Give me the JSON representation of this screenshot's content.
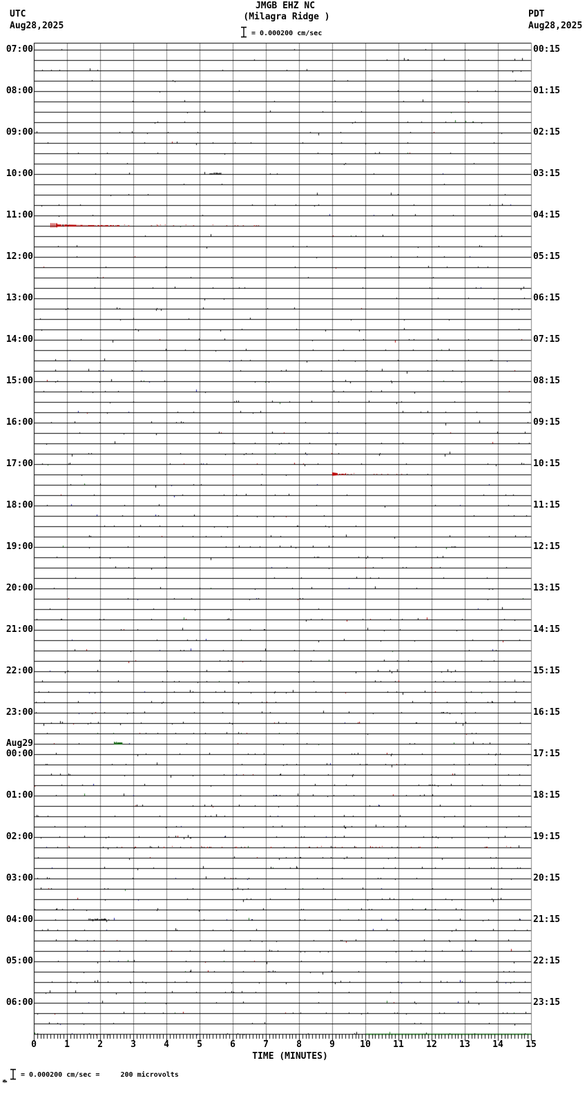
{
  "header": {
    "utc_label": "UTC",
    "utc_date": "Aug28,2025",
    "pdt_label": "PDT",
    "pdt_date": "Aug28,2025",
    "station_code": "JMGB EHZ NC",
    "station_name": "(Milagra Ridge )",
    "scale_text": "= 0.000200 cm/sec"
  },
  "footer": {
    "x_axis_title": "TIME (MINUTES)",
    "calibration_note": "= 0.000200 cm/sec =     200 microvolts"
  },
  "chart_data": {
    "type": "line",
    "subtype": "helicorder-seismogram",
    "title": "JMGB EHZ NC",
    "subtitle": "(Milagra Ridge )",
    "xlabel": "TIME (MINUTES)",
    "x_range": [
      0,
      15
    ],
    "x_tick_labels": [
      "0",
      "1",
      "2",
      "3",
      "4",
      "5",
      "6",
      "7",
      "8",
      "9",
      "10",
      "11",
      "12",
      "13",
      "14",
      "15"
    ],
    "minor_tick_minutes": 0.1,
    "grid": "vertical-minute-lines",
    "grid_color": "#808080",
    "trace_color": "#000000",
    "rows": {
      "count": 96,
      "traces_per_hour": 4,
      "minutes_per_trace": 15,
      "utc_hour_labels": [
        "07:00",
        "08:00",
        "09:00",
        "10:00",
        "11:00",
        "12:00",
        "13:00",
        "14:00",
        "15:00",
        "16:00",
        "17:00",
        "18:00",
        "19:00",
        "20:00",
        "21:00",
        "22:00",
        "23:00",
        "00:00",
        "01:00",
        "02:00",
        "03:00",
        "04:00",
        "05:00",
        "06:00"
      ],
      "pdt_hour_labels": [
        "00:15",
        "01:15",
        "02:15",
        "03:15",
        "04:15",
        "05:15",
        "06:15",
        "07:15",
        "08:15",
        "09:15",
        "10:15",
        "11:15",
        "12:15",
        "13:15",
        "14:15",
        "15:15",
        "16:15",
        "17:15",
        "18:15",
        "19:15",
        "20:15",
        "21:15",
        "22:15",
        "23:15"
      ],
      "date_rollover": {
        "label": "Aug29",
        "above_hour_index": 17
      }
    },
    "noise": {
      "seed": 1337,
      "base_density": 0.012,
      "mid_rows_from": 28,
      "mid_density": 0.018,
      "busy_rows_from": 60,
      "busy_density": 0.03,
      "colors": {
        "black": "#000000",
        "red": "#bb0000",
        "blue": "#1414aa",
        "green": "#1a7a1a"
      }
    },
    "events": [
      {
        "row": 12,
        "type": "squiggle",
        "color": "#000000",
        "start_min": 5.3,
        "end_min": 5.65,
        "amp": 2,
        "desc": "small black disturbance on 10:00 UTC row"
      },
      {
        "row": 17,
        "type": "burst",
        "color": "#bb0000",
        "start_min": 0.5,
        "end_min": 2.6,
        "tail_end_min": 6.8,
        "amp": 4,
        "desc": "red seismic event on 11:15 UTC row"
      },
      {
        "row": 41,
        "type": "burst",
        "color": "#bb0000",
        "start_min": 9.0,
        "end_min": 9.4,
        "tail_end_min": 11.2,
        "amp": 3,
        "desc": "red seismic event on 17:15 UTC row"
      },
      {
        "row": 67,
        "type": "blob",
        "color": "#156415",
        "start_min": 2.42,
        "end_min": 2.65,
        "amp": 3,
        "desc": "green event on 23:45 UTC row (Aug29 rollover line)"
      },
      {
        "row": 77,
        "type": "dotted-row",
        "color": "#bb0000",
        "start_min": 0,
        "end_min": 15,
        "amp": 1,
        "desc": "row of red telemetry dots on 02:15 UTC Aug29"
      },
      {
        "row": 84,
        "type": "squiggle",
        "color": "#000000",
        "start_min": 1.65,
        "end_min": 2.2,
        "amp": 2,
        "desc": "small black disturbance on 04:00 UTC Aug29 row"
      },
      {
        "row": 95,
        "type": "segment",
        "color": "#006400",
        "start_min": 10.0,
        "end_min": 15.0,
        "desc": "green latest-data segment on bottom row"
      }
    ]
  }
}
